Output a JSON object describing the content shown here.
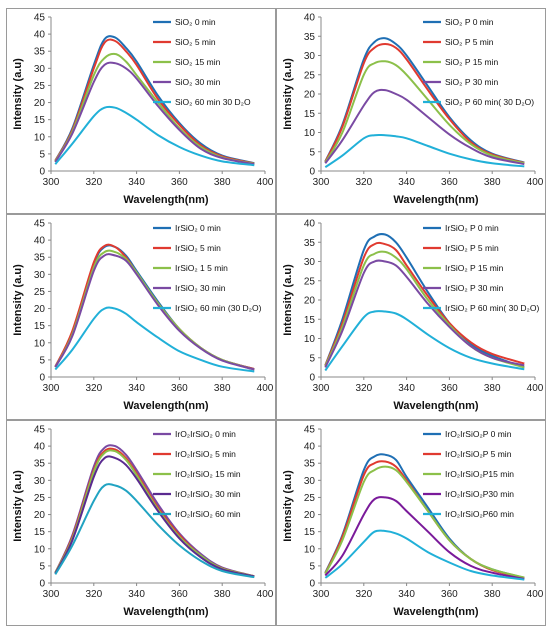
{
  "chart_data": [
    {
      "type": "line",
      "xlabel": "Wavelength(nm)",
      "ylabel": "Intensity (a.u)",
      "xlim": [
        300,
        400
      ],
      "ylim": [
        0,
        45
      ],
      "xticks": [
        300,
        320,
        340,
        360,
        380,
        400
      ],
      "yticks": [
        0,
        5,
        10,
        15,
        20,
        25,
        30,
        35,
        40,
        45
      ],
      "legend_position": "top-right",
      "x": [
        302,
        310,
        320,
        325,
        330,
        335,
        340,
        350,
        360,
        370,
        380,
        395
      ],
      "series": [
        {
          "name": "SiO₂ 0 min",
          "color": "#1f6fb4",
          "values": [
            3,
            12.5,
            31,
            38.5,
            39,
            36,
            32,
            22,
            14,
            8,
            4.5,
            2.3
          ]
        },
        {
          "name": "SiO₂ 5 min",
          "color": "#e03a30",
          "values": [
            3,
            12,
            30,
            37.5,
            38,
            35,
            31,
            21,
            13.5,
            7.5,
            4.3,
            2.2
          ]
        },
        {
          "name": "SiO₂ 15 min",
          "color": "#8cc04a",
          "values": [
            2.8,
            11.5,
            28,
            33,
            34.2,
            32,
            28,
            20,
            12.5,
            7,
            4,
            2.1
          ]
        },
        {
          "name": "SiO₂ 30 min",
          "color": "#7a4aa3",
          "values": [
            2.6,
            11,
            26,
            31,
            31.5,
            30,
            27,
            19,
            12,
            6.5,
            3.8,
            2
          ]
        },
        {
          "name": "SiO₂ 60 min 30 D₂O",
          "color": "#21b0d8",
          "values": [
            2,
            8,
            16,
            18.5,
            18.5,
            17,
            15,
            10.5,
            7,
            4.5,
            2.8,
            1.7
          ]
        }
      ]
    },
    {
      "type": "line",
      "xlabel": "Wavelength(nm)",
      "ylabel": "Intensity (a.u)",
      "xlim": [
        300,
        400
      ],
      "ylim": [
        0,
        40
      ],
      "xticks": [
        300,
        320,
        340,
        360,
        380,
        400
      ],
      "yticks": [
        0,
        5,
        10,
        15,
        20,
        25,
        30,
        35,
        40
      ],
      "legend_position": "top-right",
      "x": [
        302,
        310,
        320,
        325,
        330,
        335,
        340,
        350,
        360,
        370,
        380,
        395
      ],
      "series": [
        {
          "name": "SiO₂ P 0 min",
          "color": "#1f6fb4",
          "values": [
            2.5,
            12,
            29,
            33.5,
            34.5,
            33,
            30,
            22,
            14,
            8,
            4.5,
            2.2
          ]
        },
        {
          "name": "SiO₂ P 5 min",
          "color": "#e03a30",
          "values": [
            2.4,
            11.5,
            28,
            32,
            33,
            32,
            29,
            21,
            13.5,
            7.5,
            4.3,
            2.1
          ]
        },
        {
          "name": "SiO₂ P 15 min",
          "color": "#8cc04a",
          "values": [
            2.2,
            10,
            25,
            28,
            28.5,
            27.5,
            25,
            18.5,
            12,
            7,
            4,
            2
          ]
        },
        {
          "name": "SiO₂ P 30 min",
          "color": "#7a4aa3",
          "values": [
            2,
            8,
            17,
            20.5,
            21,
            20,
            18.5,
            14,
            9.5,
            6,
            3.5,
            1.8
          ]
        },
        {
          "name": "SiO₂ P 60 min( 30 D₂O)",
          "color": "#21b0d8",
          "values": [
            1,
            4,
            8.5,
            9.3,
            9.3,
            9,
            8.5,
            6.5,
            4.5,
            3,
            2,
            1.2
          ]
        }
      ]
    },
    {
      "type": "line",
      "xlabel": "Wavelength(nm)",
      "ylabel": "Intensity (a.u)",
      "xlim": [
        300,
        400
      ],
      "ylim": [
        0,
        45
      ],
      "xticks": [
        300,
        320,
        340,
        360,
        380,
        400
      ],
      "yticks": [
        0,
        5,
        10,
        15,
        20,
        25,
        30,
        35,
        40,
        45
      ],
      "legend_position": "top-right",
      "x": [
        302,
        310,
        320,
        325,
        330,
        335,
        340,
        350,
        360,
        370,
        380,
        395
      ],
      "series": [
        {
          "name": "IrSiO₂ 0 min",
          "color": "#1f6fb4",
          "values": [
            3,
            13,
            33,
            38,
            38,
            35.5,
            31,
            22,
            14,
            8.5,
            5,
            2.3
          ]
        },
        {
          "name": "IrSiO₂ 5 min",
          "color": "#e03a30",
          "values": [
            3,
            13.5,
            33.5,
            38.3,
            38,
            35,
            30.5,
            21.5,
            14,
            8.5,
            5,
            2.3
          ]
        },
        {
          "name": "IrSiO₂ 1 5 min",
          "color": "#8cc04a",
          "values": [
            2.9,
            12.5,
            32,
            36.5,
            36.5,
            34.5,
            30.5,
            21.5,
            14,
            8.5,
            5,
            2.2
          ]
        },
        {
          "name": "IrSiO₂ 30 min",
          "color": "#7a4aa3",
          "values": [
            2.9,
            12,
            31,
            35.5,
            35.5,
            34,
            30,
            21,
            13.5,
            8.3,
            4.8,
            2.2
          ]
        },
        {
          "name": "IrSiO₂ 60 min (30 D₂O)",
          "color": "#21b0d8",
          "values": [
            2.2,
            8,
            17,
            20,
            20,
            18.5,
            16,
            11.5,
            7.5,
            5,
            3,
            1.6
          ]
        }
      ]
    },
    {
      "type": "line",
      "xlabel": "Wavelength(nm)",
      "ylabel": "Intensity (a.u)",
      "xlim": [
        300,
        400
      ],
      "ylim": [
        0,
        40
      ],
      "xticks": [
        300,
        320,
        340,
        360,
        380,
        400
      ],
      "yticks": [
        0,
        5,
        10,
        15,
        20,
        25,
        30,
        35,
        40
      ],
      "legend_position": "top-right",
      "x": [
        302,
        310,
        320,
        325,
        330,
        335,
        340,
        350,
        360,
        370,
        380,
        395
      ],
      "series": [
        {
          "name": "IrSiO₂ P 0 min",
          "color": "#1f6fb4",
          "values": [
            3,
            15,
            33,
            36.5,
            37,
            35,
            31,
            22,
            14,
            8.5,
            5.5,
            2.5
          ]
        },
        {
          "name": "IrSiO₂ P 5 min",
          "color": "#e03a30",
          "values": [
            3,
            14,
            31,
            34.5,
            34.5,
            33,
            29,
            21,
            14,
            9,
            6,
            3.5
          ]
        },
        {
          "name": "IrSiO₂ P 15 min",
          "color": "#8cc04a",
          "values": [
            2.8,
            13,
            29,
            32,
            32.5,
            31,
            28,
            20,
            13.5,
            8,
            5,
            2.5
          ]
        },
        {
          "name": "IrSiO₂ P 30 min",
          "color": "#7a4aa3",
          "values": [
            2.5,
            12,
            27,
            30,
            30,
            29,
            26,
            19,
            13,
            8,
            5,
            3
          ]
        },
        {
          "name": "IrSiO₂ P 60 min( 30 D₂O)",
          "color": "#21b0d8",
          "values": [
            1.7,
            8,
            15.5,
            17,
            17,
            16.5,
            15,
            11,
            7.5,
            5,
            3.5,
            2
          ]
        }
      ]
    },
    {
      "type": "line",
      "xlabel": "Wavelength(nm)",
      "ylabel": "Intensity (a.u)",
      "xlim": [
        300,
        400
      ],
      "ylim": [
        0,
        45
      ],
      "xticks": [
        300,
        320,
        340,
        360,
        380,
        400
      ],
      "yticks": [
        0,
        5,
        10,
        15,
        20,
        25,
        30,
        35,
        40,
        45
      ],
      "legend_position": "top-right",
      "x": [
        302,
        310,
        320,
        325,
        330,
        335,
        340,
        350,
        360,
        370,
        380,
        395
      ],
      "series": [
        {
          "name": "IrO₂IrSiO₂   0 min",
          "color": "#7a4aa3",
          "values": [
            3,
            14,
            34,
            39.5,
            40,
            37.5,
            33,
            23,
            14.5,
            8.5,
            4.5,
            2
          ]
        },
        {
          "name": "IrO₂IrSiO₂   5 min",
          "color": "#e03a30",
          "values": [
            3,
            13.5,
            33,
            38.5,
            39,
            36.5,
            32,
            22,
            14,
            8,
            4.3,
            2
          ]
        },
        {
          "name": "IrO₂IrSiO₂ 15 min",
          "color": "#8cc04a",
          "values": [
            3,
            13,
            32.5,
            38,
            38.5,
            36,
            31.5,
            21.5,
            13.5,
            8,
            4.2,
            2
          ]
        },
        {
          "name": "IrO₂IrSiO₂ 30 min",
          "color": "#5a2a90",
          "values": [
            2.8,
            12.5,
            31,
            36.5,
            36.5,
            34.5,
            30.5,
            21,
            13,
            7.5,
            4,
            1.9
          ]
        },
        {
          "name": "IrO₂IrSiO₂ 60 min",
          "color": "#21a3c2",
          "values": [
            2.5,
            11,
            24,
            28.5,
            28.5,
            27,
            24,
            17,
            11,
            6.5,
            3.5,
            1.7
          ]
        }
      ]
    },
    {
      "type": "line",
      "xlabel": "Wavelength(nm)",
      "ylabel": "Intensity (a.u)",
      "xlim": [
        300,
        400
      ],
      "ylim": [
        0,
        45
      ],
      "xticks": [
        300,
        320,
        340,
        360,
        380,
        400
      ],
      "yticks": [
        0,
        5,
        10,
        15,
        20,
        25,
        30,
        35,
        40,
        45
      ],
      "legend_position": "top-right",
      "x": [
        302,
        310,
        320,
        325,
        330,
        335,
        340,
        350,
        360,
        370,
        380,
        395
      ],
      "series": [
        {
          "name": "IrO₂IrSiO₂P 0 min",
          "color": "#1f6fb4",
          "values": [
            3,
            14,
            33,
            37,
            37.5,
            36,
            31,
            22,
            13,
            7,
            4,
            1.5
          ]
        },
        {
          "name": "IrO₂IrSiO₂P 5 min",
          "color": "#e03a30",
          "values": [
            2.8,
            13.5,
            31.5,
            35,
            35.5,
            34,
            30,
            21,
            12.5,
            7,
            3.8,
            1.5
          ]
        },
        {
          "name": "IrO₂IrSiO₂P15 min",
          "color": "#8cc04a",
          "values": [
            2.7,
            12.5,
            29.5,
            33,
            34,
            33,
            29.5,
            21,
            12.5,
            7,
            4,
            1.6
          ]
        },
        {
          "name": "IrO₂IrSiO₂P30 min",
          "color": "#7a1a9a",
          "values": [
            2.2,
            8,
            20,
            24.5,
            25,
            24,
            21,
            15,
            9,
            5,
            3,
            1.2
          ]
        },
        {
          "name": "IrO₂IrSiO₂P60 min",
          "color": "#21b0d8",
          "values": [
            1.5,
            5.5,
            12,
            15,
            15.2,
            14.5,
            13,
            9,
            6,
            3.5,
            2.2,
            1
          ]
        }
      ]
    }
  ]
}
